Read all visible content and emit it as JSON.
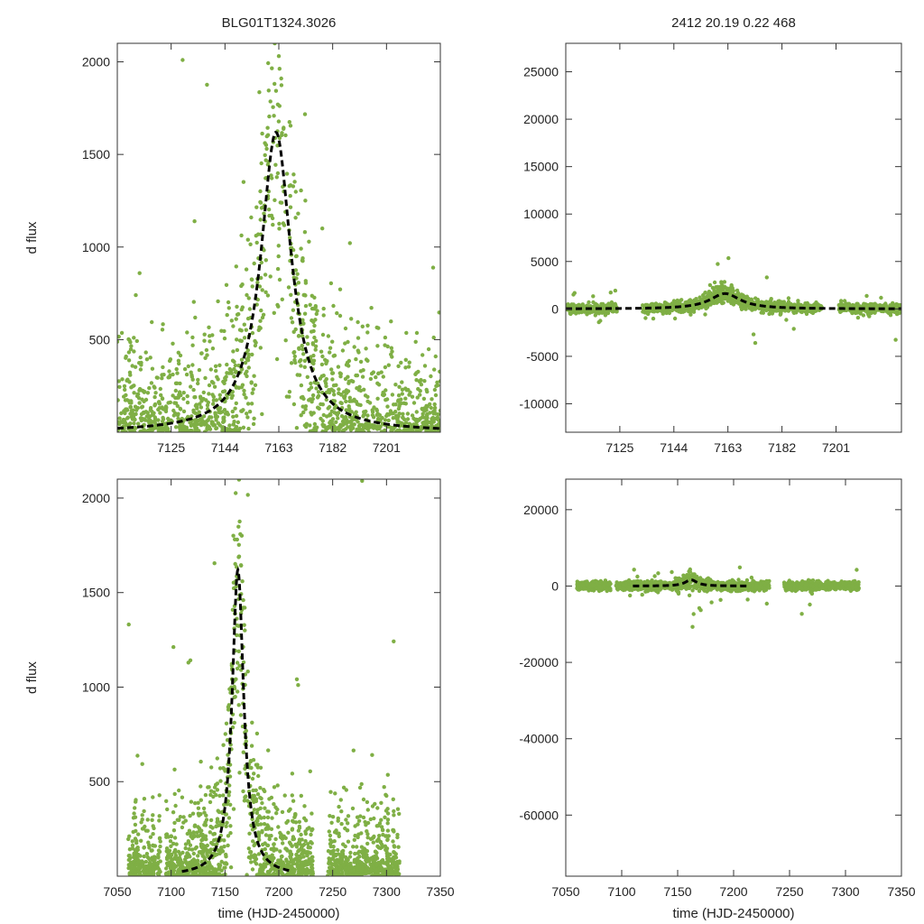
{
  "figure": {
    "title_left": "BLG01T1324.3026",
    "title_right": "2412  20.19  0.22  468",
    "point_color": "#7faf45",
    "model_color": "#000000"
  },
  "chart_data": [
    {
      "id": "top-left",
      "type": "scatter",
      "ylabel": "d flux",
      "xlabel": "",
      "xlim": [
        7106,
        7220
      ],
      "ylim": [
        0,
        2100
      ],
      "xticks": [
        7125,
        7144,
        7163,
        7182,
        7201
      ],
      "yticks": [
        500,
        1000,
        1500,
        2000
      ],
      "model": {
        "t0": 7162,
        "peak": 1620,
        "width": 6.5,
        "base": 0
      },
      "observing_windows": [
        [
          7106,
          7220
        ]
      ],
      "point_count": 1500,
      "scatter_sigma": 380,
      "seed": 11
    },
    {
      "id": "top-right",
      "type": "scatter",
      "ylabel": "",
      "xlabel": "",
      "xlim": [
        7106,
        7224
      ],
      "ylim": [
        -13000,
        28000
      ],
      "xticks": [
        7125,
        7144,
        7163,
        7182,
        7201
      ],
      "yticks": [
        -10000,
        -5000,
        0,
        5000,
        10000,
        15000,
        20000,
        25000
      ],
      "model": {
        "t0": 7162,
        "peak": 1620,
        "width": 6.5,
        "base": 0
      },
      "observing_windows": [
        [
          7106,
          7124
        ],
        [
          7133,
          7196
        ],
        [
          7202,
          7224
        ]
      ],
      "point_count": 1700,
      "scatter_sigma": 380,
      "seed": 23
    },
    {
      "id": "bottom-left",
      "type": "scatter",
      "ylabel": "d flux",
      "xlabel": "time (HJD-2450000)",
      "xlim": [
        7050,
        7350
      ],
      "ylim": [
        0,
        2100
      ],
      "xticks": [
        7050,
        7100,
        7150,
        7200,
        7250,
        7300,
        7350
      ],
      "yticks": [
        500,
        1000,
        1500,
        2000
      ],
      "model": {
        "t0": 7162,
        "peak": 1620,
        "width": 6.5,
        "base": 0,
        "draw_range": [
          7110,
          7212
        ]
      },
      "observing_windows": [
        [
          7060,
          7090
        ],
        [
          7095,
          7232
        ],
        [
          7245,
          7312
        ]
      ],
      "point_count": 1800,
      "scatter_sigma": 320,
      "seed": 37
    },
    {
      "id": "bottom-right",
      "type": "scatter",
      "ylabel": "",
      "xlabel": "time (HJD-2450000)",
      "xlim": [
        7050,
        7350
      ],
      "ylim": [
        -76000,
        28000
      ],
      "xticks": [
        7050,
        7100,
        7150,
        7200,
        7250,
        7300,
        7350
      ],
      "yticks": [
        -60000,
        -40000,
        -20000,
        0,
        20000
      ],
      "model": {
        "t0": 7162,
        "peak": 1620,
        "width": 6.5,
        "base": 0,
        "draw_range": [
          7110,
          7212
        ]
      },
      "observing_windows": [
        [
          7060,
          7090
        ],
        [
          7095,
          7232
        ],
        [
          7245,
          7312
        ]
      ],
      "point_count": 1900,
      "scatter_sigma": 900,
      "seed": 53
    }
  ]
}
